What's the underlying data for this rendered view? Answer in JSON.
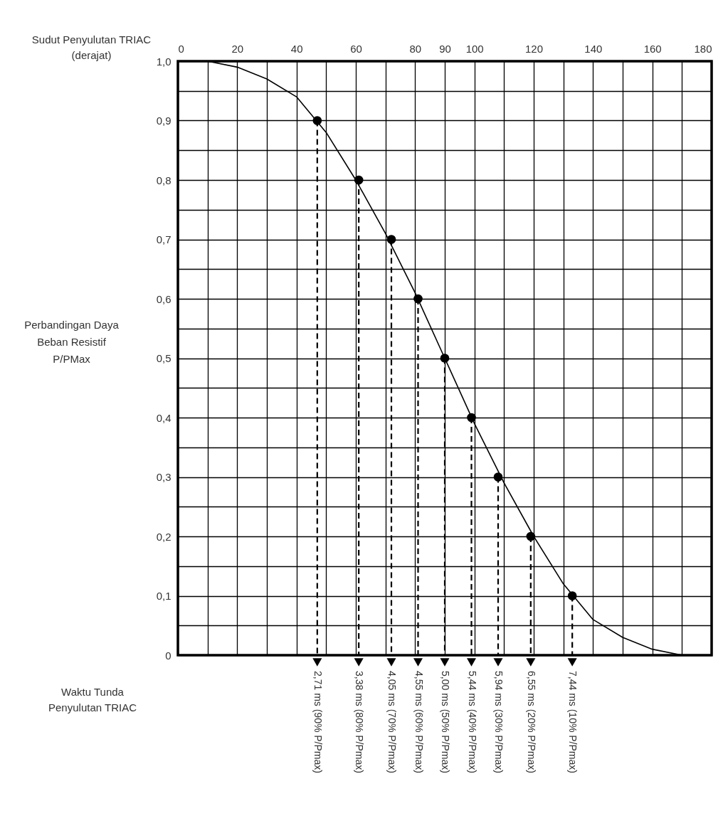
{
  "chart_data": {
    "type": "line",
    "xlabel": "Sudut Penyulutan TRIAC (derajat)",
    "ylabel": "Perbandingan Daya Beban Resistif P/PMax",
    "xlim": [
      0,
      180
    ],
    "xticks": [
      0,
      {
        "value": 10,
        "label": null
      },
      20,
      {
        "value": 30,
        "label": null
      },
      40,
      {
        "value": 50,
        "label": null
      },
      60,
      {
        "value": 70,
        "label": null
      },
      80,
      90,
      100,
      {
        "value": 110,
        "label": null
      },
      120,
      {
        "value": 130,
        "label": null
      },
      140,
      {
        "value": 150,
        "label": null
      },
      160,
      {
        "value": 170,
        "label": null
      },
      180
    ],
    "ylim": [
      0,
      1
    ],
    "yticks": [
      0,
      {
        "value": 0.05,
        "label": null
      },
      {
        "value": 0.1,
        "label": "0,1"
      },
      {
        "value": 0.15,
        "label": null
      },
      {
        "value": 0.2,
        "label": "0,2"
      },
      {
        "value": 0.25,
        "label": null
      },
      {
        "value": 0.3,
        "label": "0,3"
      },
      {
        "value": 0.35,
        "label": null
      },
      {
        "value": 0.4,
        "label": "0,4"
      },
      {
        "value": 0.45,
        "label": null
      },
      {
        "value": 0.5,
        "label": "0,5"
      },
      {
        "value": 0.55,
        "label": null
      },
      {
        "value": 0.6,
        "label": "0,6"
      },
      {
        "value": 0.65,
        "label": null
      },
      {
        "value": 0.7,
        "label": "0,7"
      },
      {
        "value": 0.75,
        "label": null
      },
      {
        "value": 0.8,
        "label": "0,8"
      },
      {
        "value": 0.85,
        "label": null
      },
      {
        "value": 0.9,
        "label": "0,9"
      },
      {
        "value": 0.95,
        "label": null
      },
      {
        "value": 1,
        "label": "1,0"
      }
    ],
    "grid": true,
    "series": [
      {
        "type": "line",
        "color": "#000000",
        "marker": "none",
        "x": [
          0,
          10,
          20,
          30,
          40,
          50,
          60,
          70,
          80,
          90,
          100,
          110,
          120,
          130,
          140,
          150,
          160,
          170,
          180
        ],
        "values": [
          1.0,
          1.0,
          0.99,
          0.97,
          0.94,
          0.88,
          0.8,
          0.71,
          0.61,
          0.5,
          0.39,
          0.29,
          0.2,
          0.12,
          0.06,
          0.03,
          0.01,
          0.0,
          0.0
        ]
      },
      {
        "type": "line",
        "color": "#000000",
        "marker": "none",
        "line_style": "dashed",
        "x": [
          47,
          47
        ],
        "values": [
          0.9,
          0
        ]
      },
      {
        "type": "line",
        "color": "#000000",
        "marker": "none",
        "line_style": "dashed",
        "x": [
          61,
          61
        ],
        "values": [
          0.8,
          0
        ]
      },
      {
        "type": "line",
        "color": "#000000",
        "marker": "none",
        "line_style": "dashed",
        "x": [
          72,
          72
        ],
        "values": [
          0.7,
          0
        ]
      },
      {
        "type": "line",
        "color": "#000000",
        "marker": "none",
        "line_style": "dashed",
        "x": [
          81,
          81
        ],
        "values": [
          0.6,
          0
        ]
      },
      {
        "type": "line",
        "color": "#000000",
        "marker": "none",
        "line_style": "dashed",
        "x": [
          90,
          90
        ],
        "values": [
          0.5,
          0
        ]
      },
      {
        "type": "line",
        "color": "#000000",
        "marker": "none",
        "line_style": "dashed",
        "x": [
          99,
          99
        ],
        "values": [
          0.4,
          0
        ]
      },
      {
        "type": "line",
        "color": "#000000",
        "marker": "none",
        "line_style": "dashed",
        "x": [
          108,
          108
        ],
        "values": [
          0.3,
          0
        ]
      },
      {
        "type": "line",
        "color": "#000000",
        "marker": "none",
        "line_style": "dashed",
        "x": [
          119,
          119
        ],
        "values": [
          0.2,
          0
        ]
      },
      {
        "type": "line",
        "color": "#000000",
        "marker": "none",
        "line_style": "dashed",
        "x": [
          133,
          133
        ],
        "values": [
          0.1,
          0
        ]
      },
      {
        "type": "scatter",
        "color": "#000000",
        "marker": "circle",
        "x": [
          47,
          61,
          72,
          81,
          90,
          99,
          108,
          119,
          133
        ],
        "values": [
          0.9,
          0.8,
          0.7,
          0.6,
          0.5,
          0.4,
          0.3,
          0.2,
          0.1
        ]
      }
    ],
    "annotations": [
      {
        "text": "2,71 ms (90% P/Pmax)",
        "x": 47,
        "y": 0
      },
      {
        "text": "3,38 ms (80% P/Pmax)",
        "x": 61,
        "y": 0
      },
      {
        "text": "4,05 ms (70% P/Pmax)",
        "x": 72,
        "y": 0
      },
      {
        "text": "4,55 ms (60% P/Pmax)",
        "x": 81,
        "y": 0
      },
      {
        "text": "5,00 ms (50% P/Pmax)",
        "x": 90,
        "y": 0
      },
      {
        "text": "5,44 ms (40% P/Pmax)",
        "x": 99,
        "y": 0
      },
      {
        "text": "5,94 ms (30% P/Pmax)",
        "x": 108,
        "y": 0
      },
      {
        "text": "6,55 ms (20% P/Pmax)",
        "x": 119,
        "y": 0
      },
      {
        "text": "7,44 ms (10% P/Pmax)",
        "x": 133,
        "y": 0
      },
      "Waktu Tunda Penyulutan TRIAC"
    ]
  }
}
